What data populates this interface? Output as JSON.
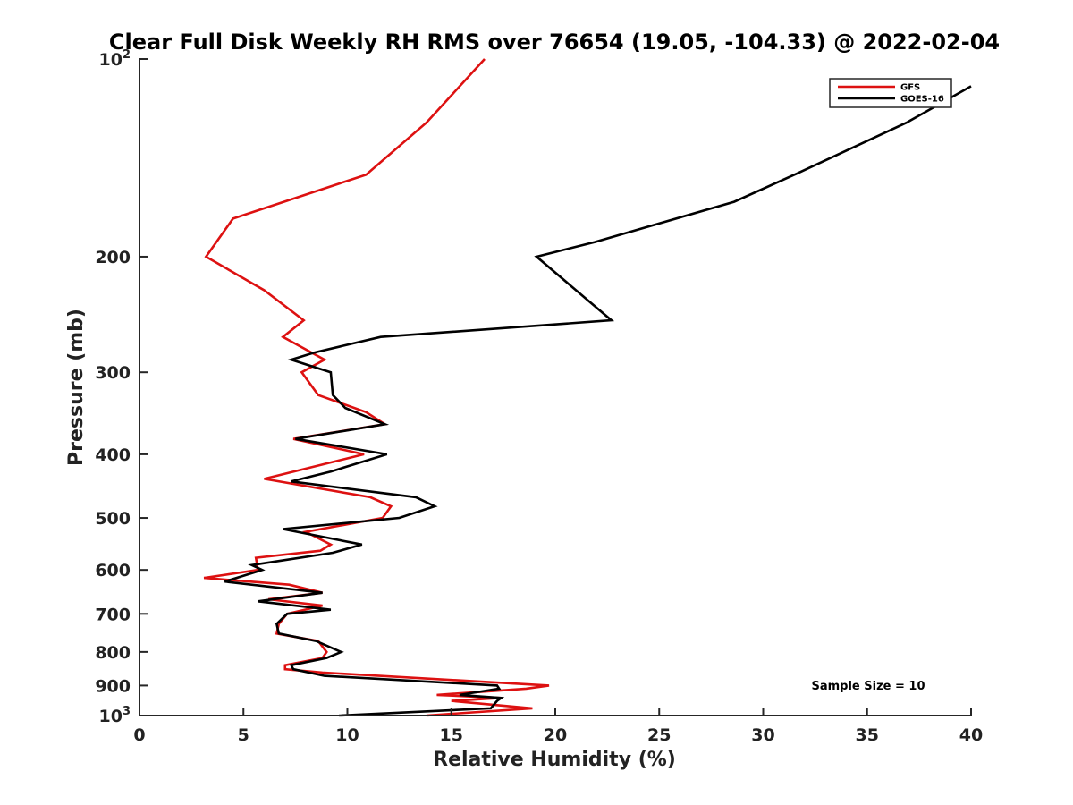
{
  "chart_data": {
    "type": "line",
    "title": "Clear Full Disk Weekly RH RMS over 76654 (19.05, -104.33) @ 2022-02-04",
    "xlabel": "Relative Humidity (%)",
    "ylabel": "Pressure (mb)",
    "xlim": [
      0,
      40
    ],
    "ylim": [
      100,
      1000
    ],
    "yscale": "log",
    "y_reversed": true,
    "grid": false,
    "legend_position": "top-right",
    "x_ticks": [
      0,
      5,
      10,
      15,
      20,
      25,
      30,
      35,
      40
    ],
    "x_tick_labels": [
      "0",
      "5",
      "10",
      "15",
      "20",
      "25",
      "30",
      "35",
      "40"
    ],
    "y_ticks": [
      100,
      200,
      300,
      400,
      500,
      600,
      700,
      800,
      900,
      1000
    ],
    "y_tick_labels": [
      {
        "base": "10",
        "sup": "2"
      },
      {
        "base": "200",
        "sup": ""
      },
      {
        "base": "300",
        "sup": ""
      },
      {
        "base": "400",
        "sup": ""
      },
      {
        "base": "500",
        "sup": ""
      },
      {
        "base": "600",
        "sup": ""
      },
      {
        "base": "700",
        "sup": ""
      },
      {
        "base": "800",
        "sup": ""
      },
      {
        "base": "900",
        "sup": ""
      },
      {
        "base": "10",
        "sup": "3"
      }
    ],
    "annotation": "Sample Size = 10",
    "series": [
      {
        "name": "GFS",
        "color": "#dd1111",
        "points": [
          [
            16.6,
            100
          ],
          [
            13.8,
            125
          ],
          [
            10.9,
            150
          ],
          [
            4.5,
            175
          ],
          [
            3.2,
            200
          ],
          [
            6.0,
            225
          ],
          [
            7.9,
            250
          ],
          [
            6.9,
            265
          ],
          [
            8.9,
            287
          ],
          [
            7.8,
            300
          ],
          [
            8.6,
            325
          ],
          [
            10.9,
            345
          ],
          [
            11.8,
            360
          ],
          [
            7.4,
            379
          ],
          [
            10.8,
            400
          ],
          [
            6.0,
            436
          ],
          [
            11.1,
            465
          ],
          [
            12.1,
            480
          ],
          [
            11.7,
            500
          ],
          [
            8.0,
            525
          ],
          [
            9.2,
            549
          ],
          [
            8.7,
            561
          ],
          [
            5.6,
            575
          ],
          [
            5.7,
            600
          ],
          [
            3.1,
            617
          ],
          [
            7.2,
            632
          ],
          [
            8.8,
            650
          ],
          [
            6.2,
            665
          ],
          [
            8.8,
            680
          ],
          [
            7.1,
            700
          ],
          [
            6.7,
            725
          ],
          [
            6.6,
            750
          ],
          [
            8.6,
            770
          ],
          [
            9.0,
            800
          ],
          [
            8.8,
            817
          ],
          [
            7.0,
            838
          ],
          [
            7.0,
            850
          ],
          [
            8.8,
            860
          ],
          [
            19.7,
            900
          ],
          [
            18.6,
            910
          ],
          [
            14.3,
            930
          ],
          [
            17.4,
            940
          ],
          [
            15.0,
            950
          ],
          [
            18.9,
            975
          ],
          [
            13.8,
            1000
          ]
        ]
      },
      {
        "name": "GOES-16",
        "color": "#000000",
        "points": [
          [
            40.0,
            110
          ],
          [
            36.9,
            125
          ],
          [
            31.5,
            150
          ],
          [
            28.6,
            165
          ],
          [
            21.9,
            190
          ],
          [
            19.1,
            200
          ],
          [
            22.7,
            250
          ],
          [
            11.6,
            265
          ],
          [
            8.4,
            280
          ],
          [
            7.3,
            287
          ],
          [
            9.2,
            300
          ],
          [
            9.3,
            325
          ],
          [
            9.9,
            340
          ],
          [
            11.8,
            360
          ],
          [
            7.5,
            379
          ],
          [
            11.9,
            400
          ],
          [
            9.2,
            425
          ],
          [
            7.3,
            440
          ],
          [
            13.3,
            465
          ],
          [
            14.2,
            480
          ],
          [
            12.5,
            500
          ],
          [
            6.9,
            520
          ],
          [
            10.7,
            549
          ],
          [
            9.3,
            565
          ],
          [
            5.4,
            590
          ],
          [
            5.9,
            600
          ],
          [
            4.1,
            625
          ],
          [
            8.8,
            650
          ],
          [
            5.7,
            670
          ],
          [
            9.2,
            690
          ],
          [
            7.1,
            700
          ],
          [
            6.6,
            725
          ],
          [
            6.7,
            750
          ],
          [
            8.5,
            770
          ],
          [
            9.7,
            800
          ],
          [
            9.0,
            817
          ],
          [
            7.3,
            838
          ],
          [
            7.4,
            850
          ],
          [
            8.9,
            870
          ],
          [
            17.2,
            900
          ],
          [
            17.3,
            910
          ],
          [
            15.4,
            930
          ],
          [
            17.4,
            940
          ],
          [
            17.2,
            950
          ],
          [
            16.9,
            975
          ],
          [
            9.6,
            1000
          ]
        ]
      }
    ]
  }
}
